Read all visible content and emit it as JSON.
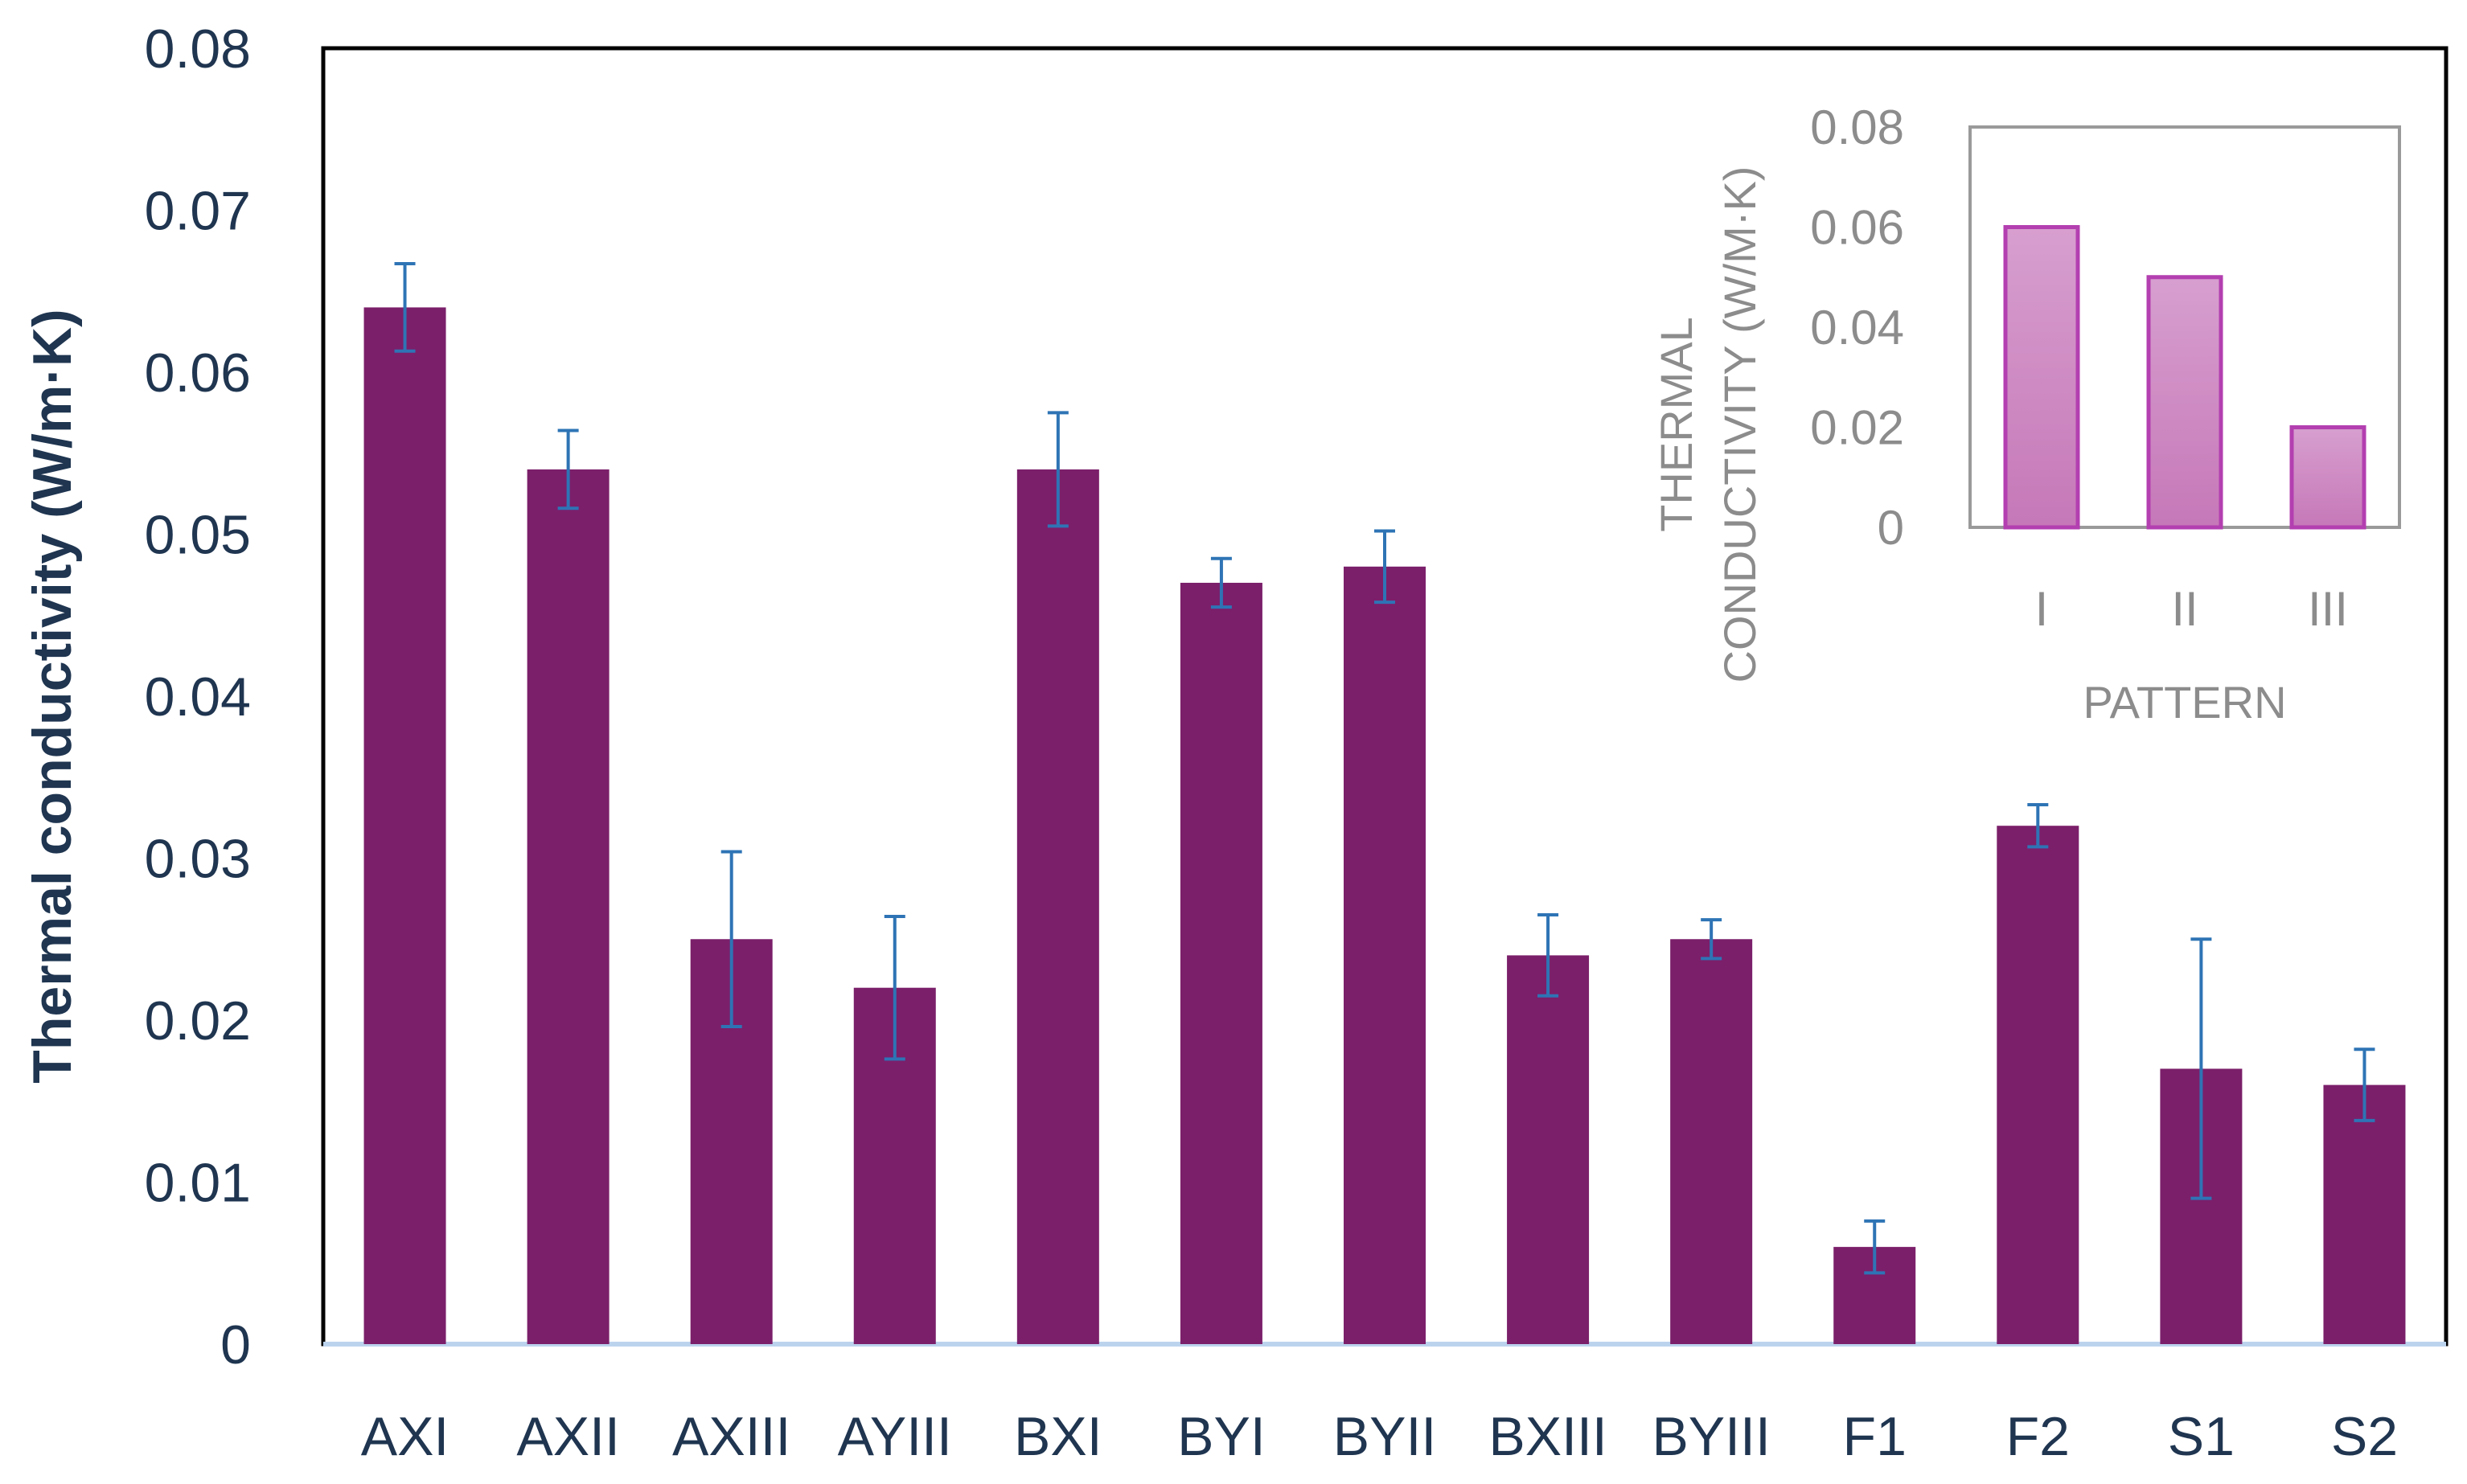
{
  "chart_data": [
    {
      "type": "bar",
      "title": "",
      "ylabel": "Thermal conductivity (W/m·K)",
      "xlabel": "",
      "ylim": [
        0,
        0.08
      ],
      "yticks": [
        "0",
        "0.01",
        "0.02",
        "0.03",
        "0.04",
        "0.05",
        "0.06",
        "0.07",
        "0.08"
      ],
      "categories": [
        "AXI",
        "AXII",
        "AXIII",
        "AYIII",
        "BXI",
        "BYI",
        "BYII",
        "BXIII",
        "BYIII",
        "F1",
        "F2",
        "S1",
        "S2"
      ],
      "values": [
        0.064,
        0.054,
        0.025,
        0.022,
        0.054,
        0.047,
        0.048,
        0.024,
        0.025,
        0.006,
        0.032,
        0.017,
        0.016
      ],
      "errors": [
        0.0027,
        0.0024,
        0.0054,
        0.0044,
        0.0035,
        0.0015,
        0.0022,
        0.0025,
        0.0012,
        0.0016,
        0.0013,
        0.008,
        0.0022
      ],
      "bar_color": "#7b1f6a",
      "error_color": "#2e74b5",
      "grid": false
    },
    {
      "type": "bar",
      "title": "",
      "xlabel": "PATTERN",
      "ylabel": "THERMAL CONDUCTIVITY (W/M·K)",
      "ylabel_lines": [
        "THERMAL",
        "CONDUCTIVITY (W/M·K)"
      ],
      "ylim": [
        0,
        0.08
      ],
      "yticks": [
        "0",
        "0.02",
        "0.04",
        "0.06",
        "0.08"
      ],
      "categories": [
        "I",
        "II",
        "III"
      ],
      "values": [
        0.06,
        0.05,
        0.02
      ],
      "bar_color": "#cf8fc4",
      "bar_edge_color": "#b33fb0",
      "grid": false
    }
  ]
}
